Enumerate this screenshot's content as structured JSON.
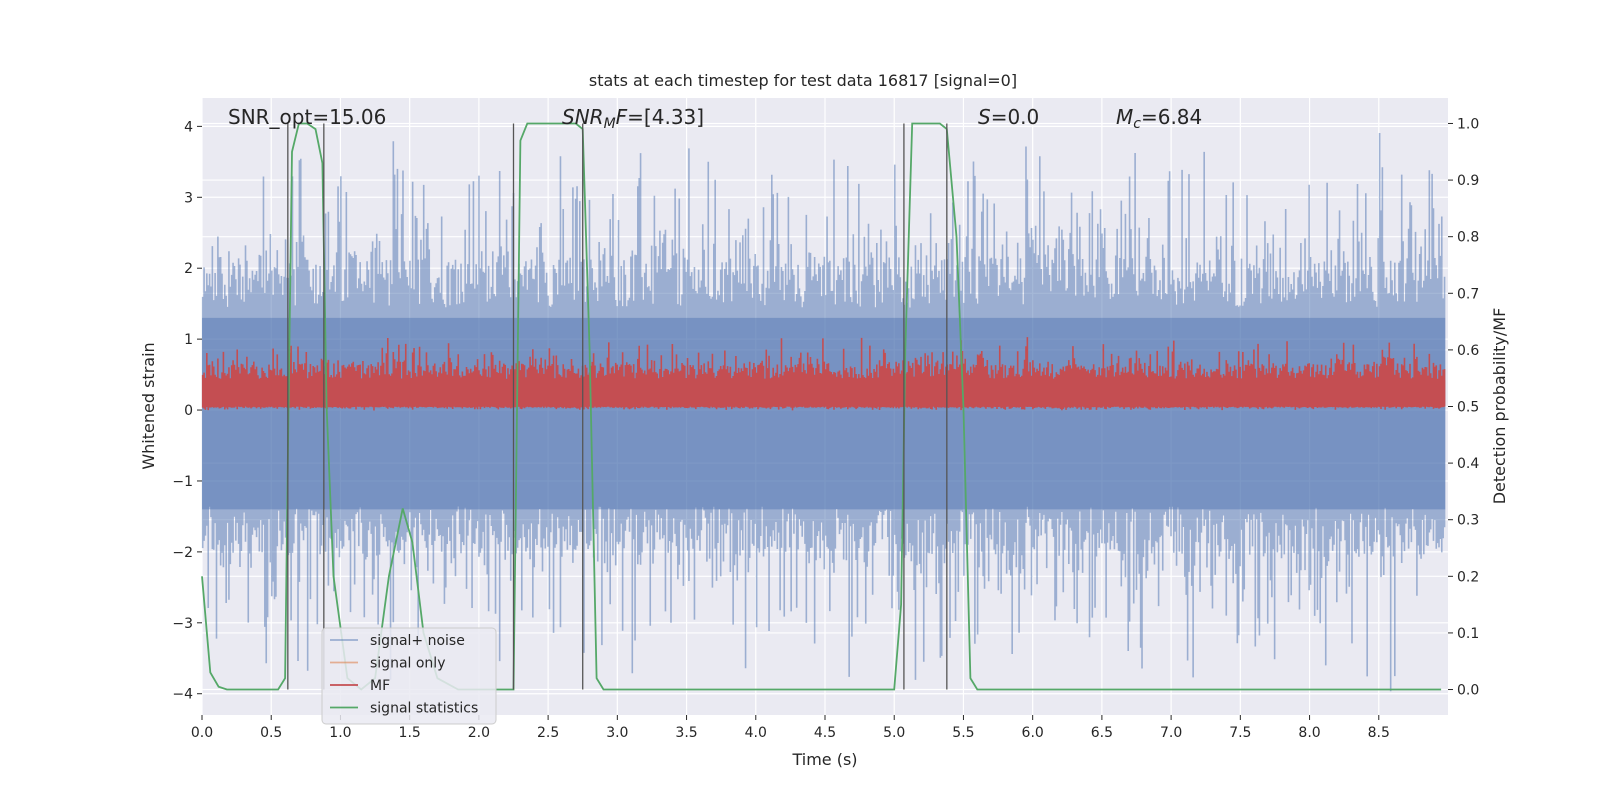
{
  "chart_data": {
    "type": "line",
    "title": "stats at each timestep for test data 16817 [signal=0]",
    "xlabel": "Time (s)",
    "ylabel": "Whitened strain",
    "ylabel_right": "Detection probability/MF",
    "xlim": [
      0.0,
      9.0
    ],
    "ylim": [
      -4.3,
      4.4
    ],
    "ylim_right": [
      -0.045,
      1.045
    ],
    "x_ticks": [
      0.0,
      0.5,
      1.0,
      1.5,
      2.0,
      2.5,
      3.0,
      3.5,
      4.0,
      4.5,
      5.0,
      5.5,
      6.0,
      6.5,
      7.0,
      7.5,
      8.0,
      8.5
    ],
    "x_tick_labels": [
      "0.0",
      "0.5",
      "1.0",
      "1.5",
      "2.0",
      "2.5",
      "3.0",
      "3.5",
      "4.0",
      "4.5",
      "5.0",
      "5.5",
      "6.0",
      "6.5",
      "7.0",
      "7.5",
      "8.0",
      "8.5"
    ],
    "y_ticks": [
      -4,
      -3,
      -2,
      -1,
      0,
      1,
      2,
      3,
      4
    ],
    "y_tick_labels": [
      "−4",
      "−3",
      "−2",
      "−1",
      "0",
      "1",
      "2",
      "3",
      "4"
    ],
    "y2_ticks": [
      0.0,
      0.1,
      0.2,
      0.3,
      0.4,
      0.5,
      0.6,
      0.7,
      0.8,
      0.9,
      1.0
    ],
    "y2_tick_labels": [
      "0.0",
      "0.1",
      "0.2",
      "0.3",
      "0.4",
      "0.5",
      "0.6",
      "0.7",
      "0.8",
      "0.9",
      "1.0"
    ],
    "annotations": [
      {
        "id": "snr-opt",
        "parts": [
          {
            "t": "SNR_opt=15.06",
            "style": "normal"
          }
        ]
      },
      {
        "id": "snr-mf",
        "parts": [
          {
            "t": "SNR",
            "style": "italic"
          },
          {
            "t": "M",
            "style": "italic-sub"
          },
          {
            "t": "F",
            "style": "italic"
          },
          {
            "t": "=[4.33]",
            "style": "normal"
          }
        ]
      },
      {
        "id": "s-value",
        "parts": [
          {
            "t": "S",
            "style": "italic"
          },
          {
            "t": "=0.0",
            "style": "normal"
          }
        ]
      },
      {
        "id": "mc-value",
        "parts": [
          {
            "t": "M",
            "style": "italic"
          },
          {
            "t": "c",
            "style": "italic-sub"
          },
          {
            "t": "=6.84",
            "style": "normal"
          }
        ]
      }
    ],
    "series": [
      {
        "name": "signal+ noise",
        "color": "#4c72b0",
        "opacity": 0.5,
        "axis": "left",
        "kind": "noise",
        "lower_typ": -1.7,
        "lower_max": -3.7,
        "upper_typ": 1.8,
        "upper_max": 3.6
      },
      {
        "name": "signal only",
        "color": "#dd8452",
        "opacity": 0.6,
        "axis": "left",
        "kind": "empty"
      },
      {
        "name": "MF",
        "color": "#c44e52",
        "opacity": 1.0,
        "axis": "left",
        "kind": "noise",
        "lower_typ": 0.04,
        "lower_max": 0.0,
        "upper_typ": 0.55,
        "upper_max": 0.95
      },
      {
        "name": "signal statistics",
        "color": "#55a868",
        "opacity": 1.0,
        "axis": "right",
        "x": [
          0.0,
          0.06,
          0.12,
          0.18,
          0.3,
          0.45,
          0.55,
          0.6,
          0.62,
          0.65,
          0.7,
          0.76,
          0.82,
          0.87,
          0.9,
          0.95,
          1.05,
          1.15,
          1.25,
          1.35,
          1.45,
          1.52,
          1.6,
          1.7,
          1.85,
          2.0,
          2.1,
          2.2,
          2.25,
          2.3,
          2.35,
          2.45,
          2.6,
          2.7,
          2.75,
          2.8,
          2.85,
          2.9,
          3.0,
          3.5,
          4.5,
          5.0,
          5.05,
          5.08,
          5.13,
          5.2,
          5.33,
          5.38,
          5.45,
          5.5,
          5.55,
          5.6,
          5.65,
          6.0,
          7.0,
          8.0,
          8.95
        ],
        "y": [
          0.2,
          0.03,
          0.005,
          0.0,
          0.0,
          0.0,
          0.0,
          0.02,
          0.4,
          0.95,
          1.0,
          1.0,
          0.99,
          0.93,
          0.5,
          0.2,
          0.02,
          0.0,
          0.02,
          0.2,
          0.32,
          0.26,
          0.1,
          0.02,
          0.0,
          0.0,
          0.0,
          0.0,
          0.0,
          0.97,
          1.0,
          1.0,
          1.0,
          1.0,
          0.99,
          0.6,
          0.02,
          0.0,
          0.0,
          0.0,
          0.0,
          0.0,
          0.15,
          0.6,
          1.0,
          1.0,
          1.0,
          0.99,
          0.8,
          0.5,
          0.02,
          0.0,
          0.0,
          0.0,
          0.0,
          0.0,
          0.0
        ]
      }
    ],
    "event_markers": [
      0.62,
      0.88,
      2.25,
      2.75,
      5.07,
      5.38
    ],
    "legend": {
      "location": "lower-left",
      "entries": [
        "signal+ noise",
        "signal only",
        "MF",
        "signal statistics"
      ]
    }
  }
}
